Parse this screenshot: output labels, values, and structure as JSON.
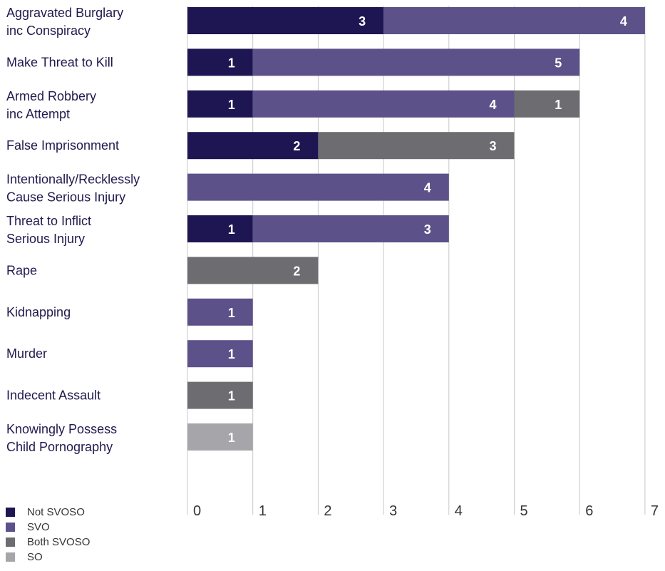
{
  "chart_data": {
    "type": "bar",
    "orientation": "horizontal",
    "stacked": true,
    "title": "",
    "xlabel": "",
    "ylabel": "",
    "xlim": [
      0,
      7
    ],
    "x_ticks": [
      "0",
      "1",
      "2",
      "3",
      "4",
      "5",
      "6",
      "7"
    ],
    "grid": "vertical",
    "legend_position": "bottom-left",
    "categories": [
      [
        "Aggravated Burglary",
        "inc Conspiracy"
      ],
      [
        "Make Threat to Kill"
      ],
      [
        "Armed Robbery",
        "inc Attempt"
      ],
      [
        "False Imprisonment"
      ],
      [
        "Intentionally/Recklessly",
        "Cause Serious Injury"
      ],
      [
        "Threat to Inflict",
        "Serious Injury"
      ],
      [
        "Rape"
      ],
      [
        "Kidnapping"
      ],
      [
        "Murder"
      ],
      [
        "Indecent Assault"
      ],
      [
        "Knowingly Possess",
        "Child Pornography"
      ]
    ],
    "series": [
      {
        "name": "Not SVOSO",
        "color": "#1e1553",
        "values": [
          3,
          1,
          1,
          2,
          0,
          1,
          0,
          0,
          0,
          0,
          0
        ]
      },
      {
        "name": "SVO",
        "color": "#5d5189",
        "values": [
          4,
          5,
          4,
          0,
          4,
          3,
          0,
          1,
          1,
          0,
          0
        ]
      },
      {
        "name": "Both SVOSO",
        "color": "#6d6d71",
        "values": [
          0,
          0,
          1,
          3,
          0,
          0,
          2,
          0,
          0,
          1,
          0
        ]
      },
      {
        "name": "SO",
        "color": "#a6a6aa",
        "values": [
          0,
          0,
          0,
          0,
          0,
          0,
          0,
          0,
          0,
          0,
          1
        ]
      }
    ]
  }
}
